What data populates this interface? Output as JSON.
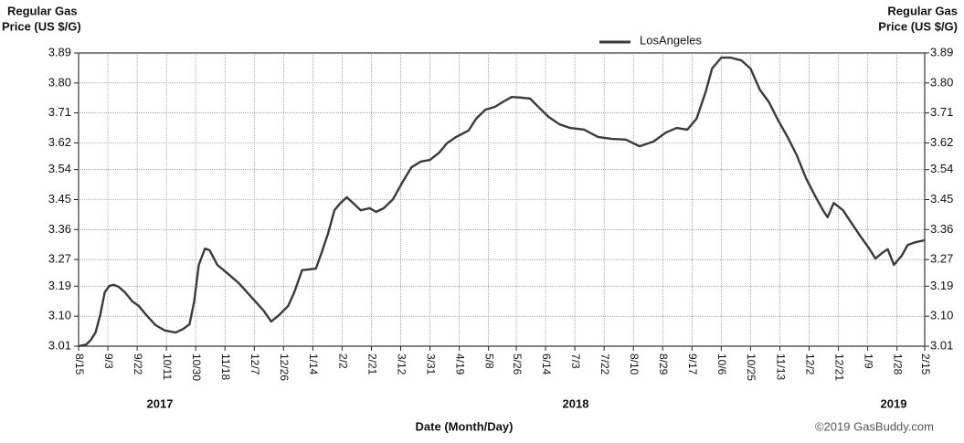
{
  "chart_data": {
    "type": "line",
    "y_label": [
      "Regular Gas",
      "Price (US $/G)"
    ],
    "y2_label": [
      "Regular Gas",
      "Price (US $/G)"
    ],
    "x_label": "Date (Month/Day)",
    "credit": "©2019 GasBuddy.com",
    "annotations": [
      "2017",
      "2018",
      "2019"
    ],
    "legend": "top",
    "grid": true,
    "xlim": [
      0,
      549
    ],
    "xticks": [
      {
        "value": 0,
        "label": "8/15"
      },
      {
        "value": 19,
        "label": "9/3"
      },
      {
        "value": 38,
        "label": "9/22"
      },
      {
        "value": 57,
        "label": "10/11"
      },
      {
        "value": 76,
        "label": "10/30"
      },
      {
        "value": 95,
        "label": "11/18"
      },
      {
        "value": 114,
        "label": "12/7"
      },
      {
        "value": 133,
        "label": "12/26"
      },
      {
        "value": 152,
        "label": "1/14"
      },
      {
        "value": 171,
        "label": "2/2"
      },
      {
        "value": 190,
        "label": "2/21"
      },
      {
        "value": 209,
        "label": "3/12"
      },
      {
        "value": 228,
        "label": "3/31"
      },
      {
        "value": 247,
        "label": "4/19"
      },
      {
        "value": 266,
        "label": "5/8"
      },
      {
        "value": 284,
        "label": "5/26"
      },
      {
        "value": 303,
        "label": "6/14"
      },
      {
        "value": 322,
        "label": "7/3"
      },
      {
        "value": 341,
        "label": "7/22"
      },
      {
        "value": 360,
        "label": "8/10"
      },
      {
        "value": 379,
        "label": "8/29"
      },
      {
        "value": 398,
        "label": "9/17"
      },
      {
        "value": 417,
        "label": "10/6"
      },
      {
        "value": 436,
        "label": "10/25"
      },
      {
        "value": 455,
        "label": "11/13"
      },
      {
        "value": 474,
        "label": "12/2"
      },
      {
        "value": 493,
        "label": "12/21"
      },
      {
        "value": 512,
        "label": "1/9"
      },
      {
        "value": 531,
        "label": "1/28"
      },
      {
        "value": 549,
        "label": "2/15"
      }
    ],
    "ylim": [
      3.01,
      3.89
    ],
    "yticks": [
      3.01,
      {
        "value": 3.1,
        "label": "3.10"
      },
      3.19,
      3.27,
      3.36,
      3.45,
      3.54,
      3.62,
      3.71,
      {
        "value": 3.8,
        "label": "3.80"
      },
      3.89
    ],
    "y2lim": [
      3.01,
      3.89
    ],
    "y2ticks": [
      3.01,
      {
        "value": 3.1,
        "label": "3.10"
      },
      3.19,
      3.27,
      3.36,
      3.45,
      3.54,
      3.62,
      3.71,
      {
        "value": 3.8,
        "label": "3.80"
      },
      3.89
    ],
    "series": [
      {
        "name": "LosAngeles",
        "color": "#3a3a3a",
        "x": [
          0,
          5,
          8,
          11,
          14,
          17,
          20,
          23,
          26,
          30,
          35,
          39,
          44,
          50,
          56,
          63,
          68,
          72,
          75,
          78,
          82,
          85,
          90,
          97,
          104,
          112,
          120,
          125,
          130,
          136,
          140,
          145,
          149,
          154,
          158,
          162,
          166,
          170,
          174,
          178,
          183,
          189,
          193,
          198,
          204,
          210,
          216,
          222,
          228,
          234,
          239,
          245,
          253,
          258,
          264,
          270,
          276,
          281,
          287,
          293,
          299,
          305,
          312,
          319,
          328,
          337,
          346,
          355,
          364,
          373,
          381,
          388,
          395,
          401,
          407,
          411,
          417,
          423,
          430,
          436,
          442,
          448,
          454,
          460,
          466,
          472,
          478,
          483,
          486,
          490,
          496,
          501,
          507,
          513,
          517,
          522,
          525,
          529,
          534,
          538,
          543,
          549
        ],
        "values": [
          3.01,
          3.015,
          3.029,
          3.051,
          3.103,
          3.172,
          3.191,
          3.194,
          3.188,
          3.172,
          3.144,
          3.131,
          3.103,
          3.073,
          3.057,
          3.051,
          3.062,
          3.076,
          3.144,
          3.254,
          3.303,
          3.298,
          3.254,
          3.227,
          3.199,
          3.158,
          3.117,
          3.084,
          3.103,
          3.131,
          3.172,
          3.238,
          3.24,
          3.243,
          3.295,
          3.35,
          3.418,
          3.44,
          3.457,
          3.44,
          3.418,
          3.424,
          3.413,
          3.424,
          3.451,
          3.501,
          3.547,
          3.564,
          3.569,
          3.591,
          3.619,
          3.638,
          3.657,
          3.693,
          3.72,
          3.728,
          3.745,
          3.758,
          3.756,
          3.753,
          3.725,
          3.698,
          3.676,
          3.665,
          3.66,
          3.638,
          3.632,
          3.63,
          3.61,
          3.624,
          3.651,
          3.665,
          3.66,
          3.693,
          3.775,
          3.843,
          3.876,
          3.876,
          3.868,
          3.843,
          3.78,
          3.742,
          3.687,
          3.638,
          3.583,
          3.514,
          3.46,
          3.418,
          3.397,
          3.44,
          3.418,
          3.383,
          3.342,
          3.303,
          3.273,
          3.292,
          3.301,
          3.254,
          3.281,
          3.314,
          3.322,
          3.328
        ]
      }
    ]
  }
}
